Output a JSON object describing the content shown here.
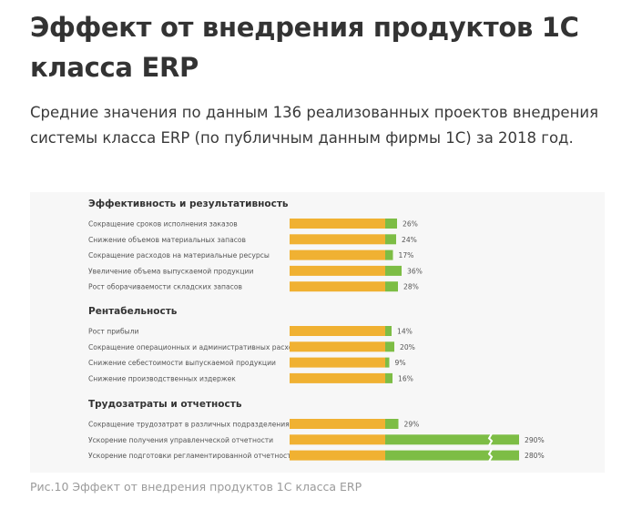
{
  "page": {
    "title": "Эффект от внедрения продуктов 1С класса ERP",
    "lead": "Средние значения по данным 136 реализованных проектов внедрения системы класса ERP (по публичным данным фирмы 1С) за 2018 год.",
    "caption": "Рис.10 Эффект от внедрения продуктов 1С класса ERP"
  },
  "colors": {
    "base_bar": "#f0b132",
    "effect_bar": "#7dbd45",
    "label_text": "#555555",
    "heading_text": "#333333",
    "figure_bg": "#f7f7f7"
  },
  "chart_data": {
    "type": "bar",
    "orientation": "horizontal",
    "stacked": true,
    "axis_break": "on bars above 100%",
    "series": [
      {
        "role": "base (100%)",
        "color": "#f0b132"
      },
      {
        "role": "effect",
        "color": "#7dbd45"
      }
    ],
    "groups": [
      {
        "title": "Эффективность и результативность",
        "items": [
          {
            "label": "Сокращение сроков исполнения заказов",
            "value": 26,
            "value_label": "26%"
          },
          {
            "label": "Снижение объемов материальных запасов",
            "value": 24,
            "value_label": "24%"
          },
          {
            "label": "Сокращение расходов на материальные ресурсы",
            "value": 17,
            "value_label": "17%"
          },
          {
            "label": "Увеличение объема выпускаемой продукции",
            "value": 36,
            "value_label": "36%"
          },
          {
            "label": "Рост оборачиваемости складских запасов",
            "value": 28,
            "value_label": "28%"
          }
        ]
      },
      {
        "title": "Рентабельность",
        "items": [
          {
            "label": "Рост прибыли",
            "value": 14,
            "value_label": "14%"
          },
          {
            "label": "Сокращение операционных и административных расходов",
            "value": 20,
            "value_label": "20%"
          },
          {
            "label": "Снижение себестоимости выпускаемой продукции",
            "value": 9,
            "value_label": "9%"
          },
          {
            "label": "Снижение производственных издержек",
            "value": 16,
            "value_label": "16%"
          }
        ]
      },
      {
        "title": "Трудозатраты и отчетность",
        "items": [
          {
            "label": "Сокращение трудозатрат в различных подразделениях",
            "value": 29,
            "value_label": "29%"
          },
          {
            "label": "Ускорение получения управленческой отчетности",
            "value": 290,
            "value_label": "290%"
          },
          {
            "label": "Ускорение подготовки регламентированной отчетности",
            "value": 280,
            "value_label": "280%"
          }
        ]
      }
    ]
  }
}
